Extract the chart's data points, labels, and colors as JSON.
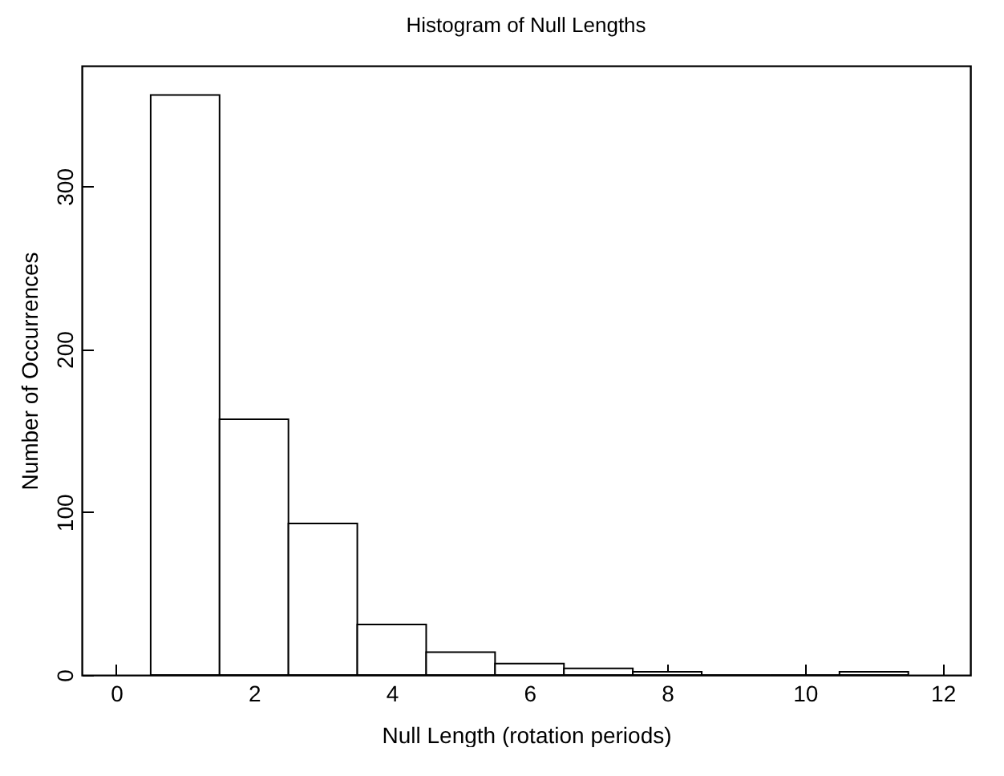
{
  "chart_data": {
    "type": "histogram",
    "title": "Histogram of Null Lengths",
    "xlabel": "Null Length (rotation periods)",
    "ylabel": "Number of Occurrences",
    "bins": [
      0.5,
      1.5,
      2.5,
      3.5,
      4.5,
      5.5,
      6.5,
      7.5,
      8.5,
      9.5,
      10.5,
      11.5
    ],
    "values": [
      356,
      157,
      93,
      31,
      14,
      7,
      4,
      2,
      0,
      0,
      2
    ],
    "color": "#000000",
    "xlim": [
      -0.5,
      12.4
    ],
    "xticks": [
      0,
      2,
      4,
      6,
      8,
      10,
      12
    ],
    "ylim": [
      0,
      374
    ],
    "yticks": [
      0,
      100,
      200,
      300
    ],
    "grid": false
  }
}
